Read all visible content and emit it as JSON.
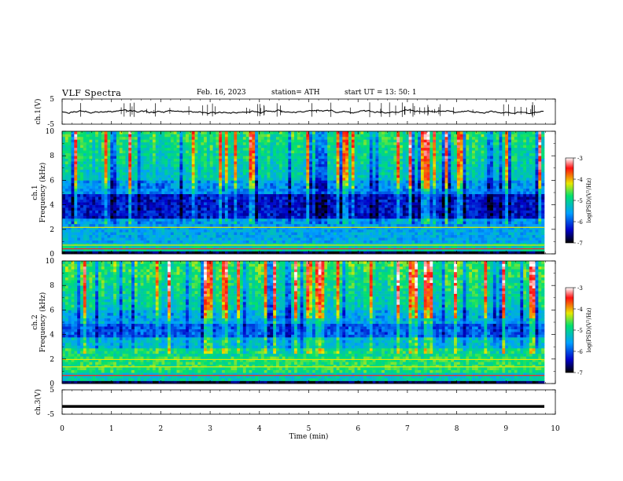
{
  "header": {
    "title": "VLF  Spectra",
    "date": "Feb. 16, 2023",
    "station": "station= ATH",
    "start_ut": "start  UT  =   13: 50: 1"
  },
  "chart_data": [
    {
      "type": "line",
      "panel": "ch1-waveform",
      "ylabel": "ch.1(V)",
      "ylim": [
        -5,
        5
      ],
      "yticks": [
        5,
        -5
      ],
      "xlim": [
        0,
        10
      ],
      "baseline_value": 0,
      "approx_range": [
        -1.5,
        1.5
      ],
      "line_color": "#000000"
    },
    {
      "type": "heatmap",
      "panel": "ch1-spectrogram",
      "ylabel": [
        "ch.1",
        "Frequency  (kHz)"
      ],
      "ylim": [
        0,
        10
      ],
      "yticks": [
        0,
        2,
        4,
        6,
        8,
        10
      ],
      "xlim": [
        0,
        10
      ],
      "colorbar": {
        "label": "log(PSD)(V²/Hz)",
        "ticks": [
          "-3",
          "-4",
          "-5",
          "-6",
          "-7"
        ],
        "range": [
          -7,
          -3
        ],
        "colors": [
          "#000000",
          "#0000c8",
          "#00a0ff",
          "#00e070",
          "#e8e800",
          "#ff1010",
          "#ffffff"
        ]
      },
      "features": [
        {
          "freq_khz": [
            0.3,
            1.0
          ],
          "level": "high"
        },
        {
          "freq_khz": [
            1.0,
            2.2
          ],
          "level": "low-moderate"
        },
        {
          "freq_khz": [
            3.0,
            5.0
          ],
          "level": "very low"
        },
        {
          "freq_khz": [
            5.5,
            10.0
          ],
          "level": "sferic bursts, high"
        }
      ]
    },
    {
      "type": "heatmap",
      "panel": "ch2-spectrogram",
      "ylabel": [
        "ch.2",
        "Frequency  (kHz)"
      ],
      "ylim": [
        0,
        10
      ],
      "yticks": [
        0,
        2,
        4,
        6,
        8,
        10
      ],
      "xlim": [
        0,
        10
      ],
      "colorbar": {
        "label": "log(PSD)(V²/Hz)",
        "ticks": [
          "-3",
          "-4",
          "-5",
          "-6",
          "-7"
        ],
        "range": [
          -7,
          -3
        ],
        "colors": [
          "#000000",
          "#0000c8",
          "#00a0ff",
          "#00e070",
          "#e8e800",
          "#ff1010",
          "#ffffff"
        ]
      },
      "features": [
        {
          "freq_khz": [
            1.0,
            3.0
          ],
          "level": "moderate-high"
        },
        {
          "freq_khz": [
            4.0,
            5.0
          ],
          "level": "low"
        },
        {
          "freq_khz": [
            5.5,
            10.0
          ],
          "level": "sferic bursts, high"
        }
      ]
    },
    {
      "type": "line",
      "panel": "ch3-waveform",
      "ylabel": "ch.3(V)",
      "ylim": [
        -5,
        5
      ],
      "yticks": [
        5,
        -5
      ],
      "xlim": [
        0,
        10
      ],
      "level_value": -1.8,
      "line_color": "#000000"
    }
  ],
  "x_axis": {
    "xlabel": "Time  (min)",
    "ticks": [
      "0",
      "1",
      "2",
      "3",
      "4",
      "5",
      "6",
      "7",
      "8",
      "9",
      "10"
    ],
    "range": [
      0,
      10
    ]
  }
}
